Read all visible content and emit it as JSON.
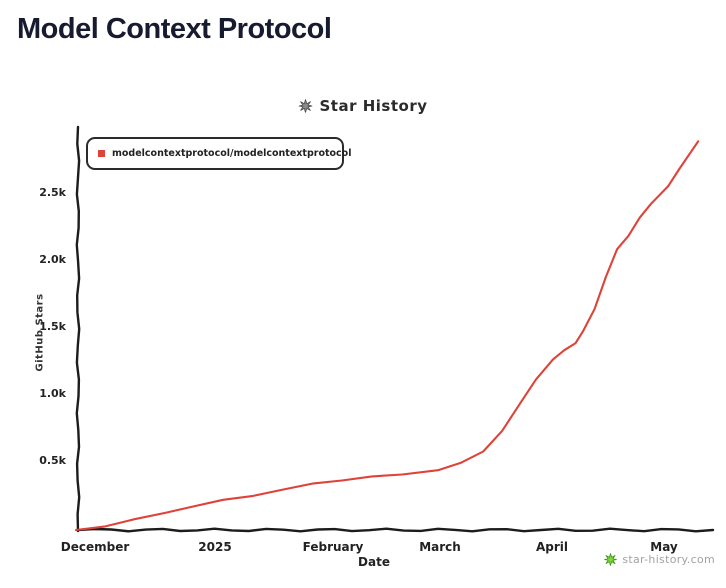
{
  "page": {
    "title": "Model Context Protocol"
  },
  "chart": {
    "header": {
      "title": "Star History",
      "icon": "star-burst-icon",
      "icon_color": "#6b6b6b"
    },
    "legend": {
      "label": "modelcontextprotocol/modelcontextprotocol",
      "marker_color": "#de4339"
    },
    "footer": {
      "brand": "star-history.com",
      "icon": "star-burst-icon",
      "icon_color": "#64c81f",
      "text_color": "#a2a2a2"
    }
  },
  "chart_data": {
    "type": "line",
    "title": "Star History",
    "xlabel": "Date",
    "ylabel": "GitHub Stars",
    "x_tick_labels": [
      "December",
      "2025",
      "February",
      "March",
      "April",
      "May"
    ],
    "y_tick_labels": [
      "2.5k",
      "2.0k",
      "1.5k",
      "1.0k",
      "0.5k"
    ],
    "y_tick_values": [
      2500,
      2000,
      1500,
      1000,
      500
    ],
    "ylim": [
      0,
      2950
    ],
    "grid": false,
    "legend_position": "top-left",
    "line_color": "#de4339",
    "axis_color": "#1c1c1c",
    "series": [
      {
        "name": "modelcontextprotocol/modelcontextprotocol",
        "points": [
          {
            "date": "2024-11-27",
            "stars": 0
          },
          {
            "date": "2024-12-04",
            "stars": 30
          },
          {
            "date": "2024-12-12",
            "stars": 75
          },
          {
            "date": "2024-12-20",
            "stars": 130
          },
          {
            "date": "2024-12-28",
            "stars": 180
          },
          {
            "date": "2025-01-05",
            "stars": 220
          },
          {
            "date": "2025-01-13",
            "stars": 260
          },
          {
            "date": "2025-01-21",
            "stars": 300
          },
          {
            "date": "2025-01-29",
            "stars": 345
          },
          {
            "date": "2025-02-06",
            "stars": 375
          },
          {
            "date": "2025-02-14",
            "stars": 395
          },
          {
            "date": "2025-02-22",
            "stars": 415
          },
          {
            "date": "2025-03-01",
            "stars": 450
          },
          {
            "date": "2025-03-07",
            "stars": 495
          },
          {
            "date": "2025-03-13",
            "stars": 590
          },
          {
            "date": "2025-03-18",
            "stars": 740
          },
          {
            "date": "2025-03-23",
            "stars": 950
          },
          {
            "date": "2025-03-27",
            "stars": 1130
          },
          {
            "date": "2025-04-01",
            "stars": 1270
          },
          {
            "date": "2025-04-04",
            "stars": 1340
          },
          {
            "date": "2025-04-07",
            "stars": 1400
          },
          {
            "date": "2025-04-09",
            "stars": 1480
          },
          {
            "date": "2025-04-12",
            "stars": 1650
          },
          {
            "date": "2025-04-15",
            "stars": 1890
          },
          {
            "date": "2025-04-18",
            "stars": 2090
          },
          {
            "date": "2025-04-21",
            "stars": 2200
          },
          {
            "date": "2025-04-24",
            "stars": 2330
          },
          {
            "date": "2025-04-27",
            "stars": 2430
          },
          {
            "date": "2025-05-01",
            "stars": 2570
          },
          {
            "date": "2025-05-04",
            "stars": 2690
          },
          {
            "date": "2025-05-09",
            "stars": 2900
          }
        ]
      }
    ]
  }
}
